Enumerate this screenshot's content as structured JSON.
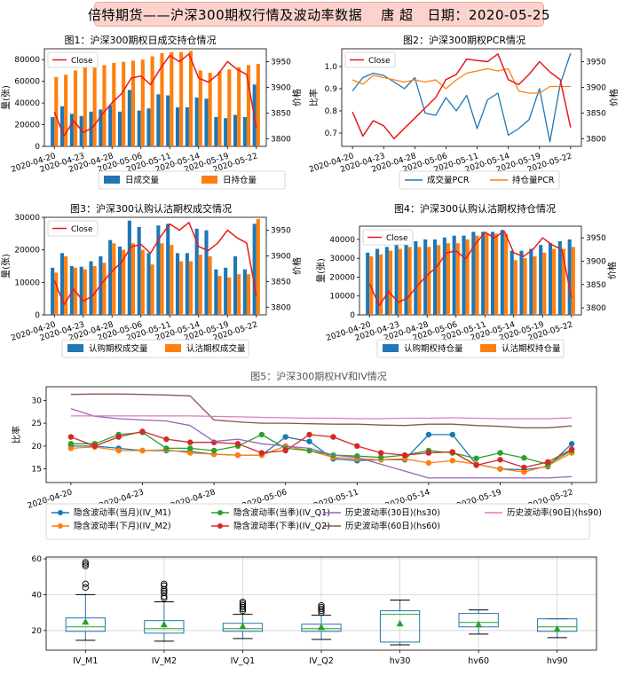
{
  "header": {
    "company": "倍特期货——沪深300期权行情及波动率数据",
    "author": "唐 超",
    "date_label": "日期：2020-05-25"
  },
  "colors": {
    "blue": "#1f77b4",
    "orange": "#ff7f0e",
    "green": "#2ca02c",
    "red": "#d62728",
    "purple": "#9467bd",
    "brown": "#8c564b",
    "pink": "#e377c2",
    "close": "#e8191b",
    "box": "#1f77b4",
    "median": "#2ca02c"
  },
  "chart_data": [
    {
      "id": "fig1",
      "type": "bar",
      "title": "图1：沪深300期权日成交持仓情况",
      "ylabel": "量(张)",
      "y2label": "价格",
      "ylim": [
        0,
        90000
      ],
      "y2lim": [
        3785,
        3975
      ],
      "yticks": [
        0,
        20000,
        40000,
        60000,
        80000
      ],
      "y2ticks": [
        3800,
        3850,
        3900,
        3950
      ],
      "xtick_labels": [
        "2020-04-20",
        "2020-04-23",
        "2020-04-28",
        "2020-05-06",
        "2020-05-11",
        "2020-05-14",
        "2020-05-19",
        "2020-05-22"
      ],
      "xtick_index": [
        0,
        3,
        6,
        9,
        12,
        15,
        18,
        21
      ],
      "legend_line": "Close",
      "series": [
        {
          "name": "日成交量",
          "values": [
            27000,
            37000,
            30000,
            28000,
            32000,
            34000,
            38000,
            32000,
            52000,
            33000,
            35000,
            48000,
            47000,
            36000,
            36000,
            45000,
            44000,
            27000,
            26000,
            29000,
            27000,
            57000
          ]
        },
        {
          "name": "日持仓量",
          "values": [
            64000,
            66000,
            70000,
            73000,
            74000,
            75000,
            77000,
            78000,
            79000,
            80000,
            83000,
            86000,
            87000,
            87000,
            88000,
            70000,
            68000,
            69000,
            71000,
            73000,
            75000,
            76000
          ]
        }
      ],
      "close": [
        3852,
        3805,
        3835,
        3812,
        3822,
        3848,
        3870,
        3888,
        3918,
        3922,
        3905,
        3936,
        3962,
        3950,
        3965,
        3918,
        3910,
        3925,
        3950,
        3935,
        3925,
        3822
      ]
    },
    {
      "id": "fig2",
      "type": "line",
      "title": "图2：沪深300期权PCR情况",
      "ylabel": "比率",
      "y2label": "价格",
      "ylim": [
        0.64,
        1.08
      ],
      "y2lim": [
        3785,
        3975
      ],
      "yticks": [
        0.7,
        0.8,
        0.9,
        1.0
      ],
      "y2ticks": [
        3800,
        3850,
        3900,
        3950
      ],
      "xtick_labels": [
        "2020-04-20",
        "2020-04-23",
        "2020-04-28",
        "2020-05-06",
        "2020-05-11",
        "2020-05-14",
        "2020-05-19",
        "2020-05-22"
      ],
      "xtick_index": [
        0,
        3,
        6,
        9,
        12,
        15,
        18,
        21
      ],
      "legend_line": "Close",
      "series": [
        {
          "name": "成交量PCR",
          "values": [
            0.89,
            0.95,
            0.97,
            0.96,
            0.93,
            0.9,
            0.95,
            0.79,
            0.78,
            0.86,
            0.8,
            0.87,
            0.72,
            0.85,
            0.88,
            0.69,
            0.72,
            0.76,
            0.9,
            0.66,
            0.92,
            1.06
          ]
        },
        {
          "name": "持仓量PCR",
          "values": [
            0.94,
            0.92,
            0.96,
            0.95,
            0.94,
            0.93,
            0.94,
            0.93,
            0.94,
            0.9,
            0.94,
            0.97,
            0.98,
            0.99,
            0.98,
            0.99,
            0.89,
            0.88,
            0.88,
            0.91,
            0.91,
            0.91
          ]
        }
      ],
      "close": [
        3852,
        3805,
        3835,
        3825,
        3800,
        3820,
        3840,
        3860,
        3880,
        3915,
        3925,
        3955,
        3952,
        3950,
        3965,
        3915,
        3905,
        3925,
        3950,
        3930,
        3915,
        3822
      ]
    },
    {
      "id": "fig3",
      "type": "bar",
      "title": "图3：沪深300认购认沽期权成交情况",
      "ylabel": "量(张)",
      "y2label": "价格",
      "ylim": [
        0,
        30000
      ],
      "y2lim": [
        3785,
        3975
      ],
      "yticks": [
        0,
        10000,
        20000,
        30000
      ],
      "y2ticks": [
        3800,
        3850,
        3900,
        3950
      ],
      "xtick_labels": [
        "2020-04-20",
        "2020-04-23",
        "2020-04-28",
        "2020-05-06",
        "2020-05-11",
        "2020-05-14",
        "2020-05-19",
        "2020-05-22"
      ],
      "xtick_index": [
        0,
        3,
        6,
        9,
        12,
        15,
        18,
        21
      ],
      "legend_line": "Close",
      "series": [
        {
          "name": "认购期权成交量",
          "values": [
            14500,
            19000,
            15000,
            14800,
            16500,
            18000,
            23000,
            21000,
            29000,
            27000,
            19000,
            27500,
            28000,
            19000,
            19000,
            26500,
            26000,
            14000,
            14500,
            18000,
            14000,
            28000
          ]
        },
        {
          "name": "认沽期权成交量",
          "values": [
            13000,
            18000,
            14500,
            14000,
            15000,
            16000,
            22000,
            20000,
            22000,
            20000,
            15500,
            22000,
            21500,
            16500,
            16500,
            18500,
            18000,
            12000,
            11500,
            12500,
            12500,
            29500
          ]
        }
      ],
      "close": [
        3852,
        3805,
        3835,
        3812,
        3822,
        3848,
        3870,
        3888,
        3918,
        3922,
        3905,
        3936,
        3962,
        3950,
        3965,
        3918,
        3910,
        3925,
        3950,
        3935,
        3925,
        3822
      ]
    },
    {
      "id": "fig4",
      "type": "bar",
      "title": "图4：沪深300认购认沽期权持仓情况",
      "ylabel": "量(张)",
      "y2label": "价格",
      "ylim": [
        0,
        47000
      ],
      "y2lim": [
        3785,
        3975
      ],
      "yticks": [
        0,
        10000,
        20000,
        30000,
        40000
      ],
      "y2ticks": [
        3800,
        3850,
        3900,
        3950
      ],
      "xtick_labels": [
        "2020-04-20",
        "2020-04-23",
        "2020-04-28",
        "2020-05-06",
        "2020-05-11",
        "2020-05-14",
        "2020-05-19",
        "2020-05-22"
      ],
      "xtick_index": [
        0,
        3,
        6,
        9,
        12,
        15,
        18,
        21
      ],
      "legend_line": "Close",
      "series": [
        {
          "name": "认购期权持仓量",
          "values": [
            33000,
            35000,
            36000,
            37000,
            38000,
            39000,
            40000,
            40000,
            41000,
            42000,
            42000,
            44000,
            44000,
            44000,
            45000,
            34000,
            34000,
            35000,
            37000,
            38000,
            39000,
            40000
          ]
        },
        {
          "name": "认沽期权持仓量",
          "values": [
            31000,
            32000,
            34000,
            35000,
            36000,
            36000,
            36000,
            37000,
            38000,
            38000,
            40000,
            42000,
            43000,
            43000,
            43000,
            29000,
            30000,
            31000,
            33000,
            35000,
            35000,
            36000
          ]
        }
      ],
      "close": [
        3852,
        3805,
        3835,
        3812,
        3822,
        3848,
        3870,
        3888,
        3918,
        3922,
        3905,
        3936,
        3962,
        3950,
        3965,
        3918,
        3910,
        3925,
        3950,
        3935,
        3925,
        3822
      ]
    },
    {
      "id": "fig5",
      "type": "line",
      "title": "图5：沪深300期权HV和IV情况",
      "ylabel": "比率",
      "ylim": [
        12,
        33
      ],
      "yticks": [
        15,
        20,
        25,
        30
      ],
      "xtick_labels": [
        "2020-04-20",
        "2020-04-23",
        "2020-04-28",
        "2020-05-06",
        "2020-05-11",
        "2020-05-14",
        "2020-05-19",
        "2020-05-22"
      ],
      "xtick_index": [
        0,
        3,
        6,
        9,
        12,
        15,
        18,
        21
      ],
      "series": [
        {
          "name": "隐含波动率(当月)(IV_M1)",
          "values": [
            20.0,
            20.0,
            19.5,
            19.0,
            19.0,
            18.8,
            18.2,
            18.0,
            18.0,
            22.0,
            21.0,
            17.2,
            16.8,
            17.0,
            17.0,
            22.5,
            22.5,
            16.0,
            15.0,
            14.8,
            15.5,
            20.5
          ]
        },
        {
          "name": "隐含波动率(下月)(IV_M2)",
          "values": [
            19.5,
            19.8,
            19.0,
            19.0,
            19.2,
            18.5,
            18.2,
            18.0,
            18.0,
            20.0,
            19.0,
            17.5,
            17.2,
            17.0,
            17.2,
            16.3,
            16.8,
            16.0,
            15.0,
            14.3,
            15.7,
            18.5
          ]
        },
        {
          "name": "隐含波动率(当季)(IV_Q1)",
          "values": [
            20.5,
            20.5,
            22.5,
            23.0,
            19.5,
            19.5,
            19.0,
            20.0,
            22.5,
            19.5,
            19.0,
            18.0,
            17.8,
            17.5,
            18.0,
            19.0,
            18.5,
            17.3,
            18.5,
            17.4,
            16.0,
            19.0
          ]
        },
        {
          "name": "隐含波动率(下季)(IV_Q2)",
          "values": [
            22.0,
            20.0,
            22.0,
            23.2,
            21.5,
            20.8,
            20.8,
            20.5,
            18.5,
            19.0,
            22.5,
            22.0,
            20.0,
            18.5,
            18.0,
            18.5,
            18.7,
            15.8,
            17.0,
            15.3,
            16.5,
            19.3
          ]
        },
        {
          "name": "历史波动率(30日)(hs30)",
          "values": [
            28.2,
            26.5,
            26.0,
            25.7,
            25.5,
            24.5,
            21.0,
            21.5,
            20.5,
            20.0,
            19.5,
            18.0,
            17.5,
            16.0,
            14.5,
            13.0,
            13.0,
            13.0,
            13.0,
            13.0,
            13.0,
            13.3
          ]
        },
        {
          "name": "历史波动率(60日)(hs60)",
          "values": [
            31.3,
            31.4,
            31.4,
            31.3,
            31.2,
            31.0,
            25.7,
            25.3,
            25.0,
            25.0,
            24.9,
            24.8,
            24.8,
            24.6,
            24.5,
            24.8,
            24.8,
            24.5,
            24.3,
            24.0,
            24.0,
            24.4
          ]
        },
        {
          "name": "历史波动率(90日)(hs90)",
          "values": [
            26.6,
            26.6,
            26.6,
            26.6,
            26.6,
            26.6,
            26.5,
            26.4,
            26.3,
            26.2,
            26.1,
            26.1,
            26.0,
            26.0,
            26.1,
            26.1,
            26.2,
            26.1,
            26.0,
            26.0,
            26.0,
            26.2
          ]
        }
      ]
    },
    {
      "id": "fig6",
      "type": "box",
      "ylim": [
        9,
        61
      ],
      "yticks": [
        20,
        40,
        60
      ],
      "categories": [
        "IV_M1",
        "IV_M2",
        "IV_Q1",
        "IV_Q2",
        "hv30",
        "hv60",
        "hv90"
      ],
      "boxes": [
        {
          "min": 14.5,
          "q1": 19.5,
          "median": 22,
          "q3": 27,
          "max": 40,
          "mean": 25,
          "outliers": [
            44,
            46,
            56,
            57,
            58
          ]
        },
        {
          "min": 14,
          "q1": 18.5,
          "median": 21,
          "q3": 25.5,
          "max": 36,
          "mean": 23.5,
          "outliers": [
            38,
            39,
            41,
            42,
            43,
            45,
            46
          ]
        },
        {
          "min": 15.5,
          "q1": 19.5,
          "median": 21,
          "q3": 24,
          "max": 29,
          "mean": 22.5,
          "outliers": [
            31,
            32,
            33,
            34,
            35,
            36
          ]
        },
        {
          "min": 15,
          "q1": 19.5,
          "median": 21,
          "q3": 23.5,
          "max": 28.5,
          "mean": 22,
          "outliers": [
            30,
            31,
            32,
            33,
            34
          ]
        },
        {
          "min": 12,
          "q1": 13.5,
          "median": 29,
          "q3": 31,
          "max": 37,
          "mean": 24
        },
        {
          "min": 18,
          "q1": 22,
          "median": 24.5,
          "q3": 29.5,
          "max": 31.5,
          "mean": 23.5
        },
        {
          "min": 16,
          "q1": 19.5,
          "median": 22,
          "q3": 26.5,
          "max": 26.5,
          "mean": 21
        }
      ]
    }
  ]
}
